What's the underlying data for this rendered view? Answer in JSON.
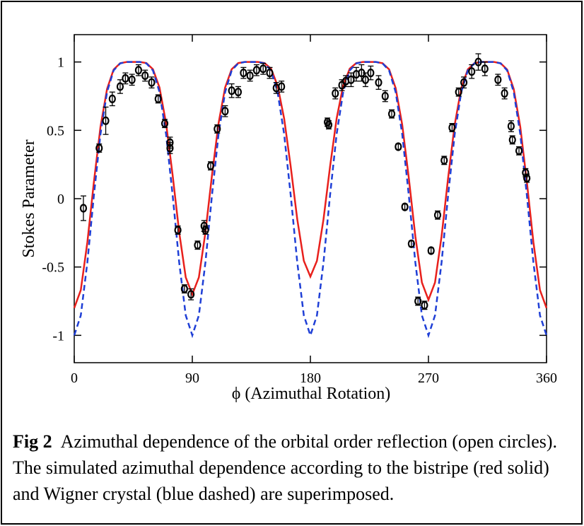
{
  "chart_data": {
    "type": "line",
    "xlabel": "ϕ  (Azimuthal Rotation)",
    "ylabel": "Stokes Parameter",
    "xlim": [
      0,
      360
    ],
    "xticks": [
      0,
      90,
      180,
      270,
      360
    ],
    "ylim": [
      -1.2,
      1.2
    ],
    "yticks": [
      -1,
      -0.5,
      0,
      0.5,
      1
    ],
    "x": [
      0,
      5,
      10,
      15,
      20,
      25,
      30,
      35,
      40,
      45,
      50,
      55,
      60,
      65,
      70,
      75,
      80,
      85,
      90,
      95,
      100,
      105,
      110,
      115,
      120,
      125,
      130,
      135,
      140,
      145,
      150,
      155,
      160,
      165,
      170,
      175,
      180,
      185,
      190,
      195,
      200,
      205,
      210,
      215,
      220,
      225,
      230,
      235,
      240,
      245,
      250,
      255,
      260,
      265,
      270,
      275,
      280,
      285,
      290,
      295,
      300,
      305,
      310,
      315,
      320,
      325,
      330,
      335,
      340,
      345,
      350,
      355,
      360
    ],
    "series": [
      {
        "color": "#e8201c",
        "style": "solid",
        "values": [
          -0.8,
          -0.669,
          -0.319,
          0.123,
          0.525,
          0.802,
          0.944,
          0.991,
          1,
          1,
          1,
          0.992,
          0.947,
          0.813,
          0.551,
          0.172,
          -0.246,
          -0.576,
          -0.7,
          -0.576,
          -0.246,
          0.172,
          0.551,
          0.813,
          0.947,
          0.992,
          1,
          1,
          1,
          0.992,
          0.951,
          0.827,
          0.586,
          0.235,
          -0.151,
          -0.455,
          -0.57,
          -0.455,
          -0.151,
          0.235,
          0.586,
          0.827,
          0.951,
          0.992,
          1,
          1,
          1,
          0.991,
          0.946,
          0.809,
          0.541,
          0.153,
          -0.275,
          -0.613,
          -0.74,
          -0.613,
          -0.275,
          0.153,
          0.541,
          0.809,
          0.946,
          0.991,
          1,
          1,
          1,
          0.991,
          0.944,
          0.802,
          0.525,
          0.123,
          -0.319,
          -0.669,
          -0.8
        ]
      },
      {
        "color": "#1f3fd6",
        "style": "dashed",
        "values": [
          -1,
          -0.854,
          -0.466,
          0.026,
          0.472,
          0.78,
          0.938,
          0.99,
          1,
          1,
          1,
          0.99,
          0.938,
          0.78,
          0.472,
          0.026,
          -0.466,
          -0.854,
          -1,
          -0.854,
          -0.466,
          0.026,
          0.472,
          0.78,
          0.938,
          0.99,
          1,
          1,
          1,
          0.99,
          0.938,
          0.78,
          0.472,
          0.026,
          -0.466,
          -0.854,
          -1,
          -0.854,
          -0.466,
          0.026,
          0.472,
          0.78,
          0.938,
          0.99,
          1,
          1,
          1,
          0.99,
          0.938,
          0.78,
          0.472,
          0.026,
          -0.466,
          -0.854,
          -1,
          -0.854,
          -0.466,
          0.026,
          0.472,
          0.78,
          0.938,
          0.99,
          1,
          1,
          1,
          0.99,
          0.938,
          0.78,
          0.472,
          0.026,
          -0.466,
          -0.854,
          -1
        ]
      }
    ],
    "points": {
      "color": "#000000",
      "x": [
        7,
        19,
        24,
        29,
        35,
        39,
        44,
        49,
        54,
        59,
        64,
        69,
        73,
        73,
        79,
        84,
        89,
        94,
        99,
        100,
        104,
        109,
        115,
        120,
        125,
        129,
        134,
        139,
        144,
        149,
        154,
        158,
        193,
        194,
        199,
        204,
        207,
        211,
        215,
        219,
        222,
        226,
        232,
        237,
        242,
        247,
        252,
        257,
        262,
        267,
        272,
        277,
        282,
        288,
        293,
        297,
        303,
        308,
        313,
        323,
        328,
        333,
        334,
        339,
        344,
        345
      ],
      "values": [
        -0.07,
        0.37,
        0.57,
        0.73,
        0.82,
        0.88,
        0.87,
        0.94,
        0.9,
        0.85,
        0.73,
        0.55,
        0.41,
        0.37,
        -0.23,
        -0.66,
        -0.7,
        -0.34,
        -0.2,
        -0.23,
        0.24,
        0.51,
        0.64,
        0.79,
        0.78,
        0.92,
        0.9,
        0.94,
        0.95,
        0.92,
        0.81,
        0.82,
        0.56,
        0.54,
        0.77,
        0.83,
        0.86,
        0.87,
        0.91,
        0.92,
        0.87,
        0.92,
        0.85,
        0.75,
        0.62,
        0.38,
        -0.06,
        -0.33,
        -0.75,
        -0.78,
        -0.38,
        -0.12,
        0.28,
        0.52,
        0.78,
        0.85,
        0.93,
        1.0,
        0.95,
        0.87,
        0.77,
        0.53,
        0.43,
        0.35,
        0.19,
        0.15
      ],
      "errors": [
        0.09,
        0.03,
        0.1,
        0.05,
        0.05,
        0.04,
        0.04,
        0.04,
        0.04,
        0.04,
        0.03,
        0.03,
        0.04,
        0.04,
        0.03,
        0.03,
        0.04,
        0.03,
        0.04,
        0.03,
        0.03,
        0.03,
        0.04,
        0.05,
        0.04,
        0.04,
        0.04,
        0.04,
        0.04,
        0.04,
        0.04,
        0.04,
        0.03,
        0.03,
        0.04,
        0.04,
        0.04,
        0.05,
        0.05,
        0.06,
        0.05,
        0.05,
        0.05,
        0.04,
        0.03,
        0.02,
        0.02,
        0.02,
        0.03,
        0.03,
        0.02,
        0.03,
        0.03,
        0.03,
        0.03,
        0.04,
        0.05,
        0.06,
        0.05,
        0.04,
        0.04,
        0.04,
        0.03,
        0.03,
        0.03,
        0.03
      ]
    },
    "caption": {
      "label": "Fig 2",
      "text": "Azimuthal dependence of the orbital order reflection (open circles).   The simulated azimuthal dependence according to the bistripe (red solid) and Wigner crystal (blue dashed) are superimposed."
    }
  }
}
